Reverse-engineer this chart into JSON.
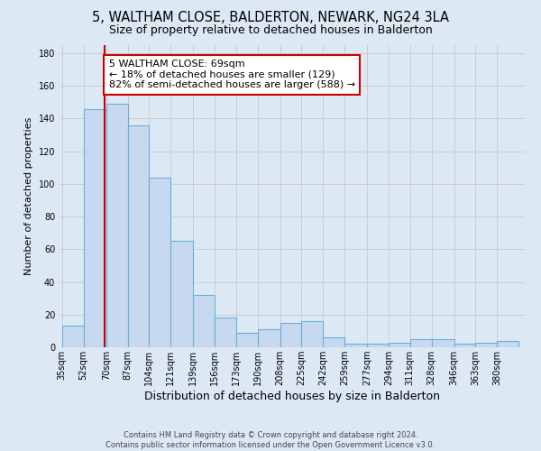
{
  "title": "5, WALTHAM CLOSE, BALDERTON, NEWARK, NG24 3LA",
  "subtitle": "Size of property relative to detached houses in Balderton",
  "xlabel": "Distribution of detached houses by size in Balderton",
  "ylabel": "Number of detached properties",
  "bar_labels": [
    "35sqm",
    "52sqm",
    "70sqm",
    "87sqm",
    "104sqm",
    "121sqm",
    "139sqm",
    "156sqm",
    "173sqm",
    "190sqm",
    "208sqm",
    "225sqm",
    "242sqm",
    "259sqm",
    "277sqm",
    "294sqm",
    "311sqm",
    "328sqm",
    "346sqm",
    "363sqm",
    "380sqm"
  ],
  "bar_heights": [
    13,
    146,
    149,
    136,
    104,
    65,
    32,
    18,
    9,
    11,
    15,
    16,
    6,
    2,
    2,
    3,
    5,
    5,
    2,
    3,
    4
  ],
  "bin_edges": [
    35,
    52,
    70,
    87,
    104,
    121,
    139,
    156,
    173,
    190,
    208,
    225,
    242,
    259,
    277,
    294,
    311,
    328,
    346,
    363,
    380,
    397
  ],
  "bar_color": "#c6d9f0",
  "bar_edge_color": "#6baed6",
  "vline_x": 69,
  "vline_color": "#cc0000",
  "annotation_line1": "5 WALTHAM CLOSE: 69sqm",
  "annotation_line2": "← 18% of detached houses are smaller (129)",
  "annotation_line3": "82% of semi-detached houses are larger (588) →",
  "annotation_box_color": "#ffffff",
  "annotation_box_edge_color": "#cc0000",
  "ylim": [
    0,
    185
  ],
  "yticks": [
    0,
    20,
    40,
    60,
    80,
    100,
    120,
    140,
    160,
    180
  ],
  "grid_color": "#cccccc",
  "bg_color": "#dce9f5",
  "footer_line1": "Contains HM Land Registry data © Crown copyright and database right 2024.",
  "footer_line2": "Contains public sector information licensed under the Open Government Licence v3.0.",
  "title_fontsize": 10.5,
  "subtitle_fontsize": 9,
  "xlabel_fontsize": 9,
  "ylabel_fontsize": 8,
  "tick_fontsize": 7,
  "annotation_fontsize": 8,
  "footer_fontsize": 6
}
